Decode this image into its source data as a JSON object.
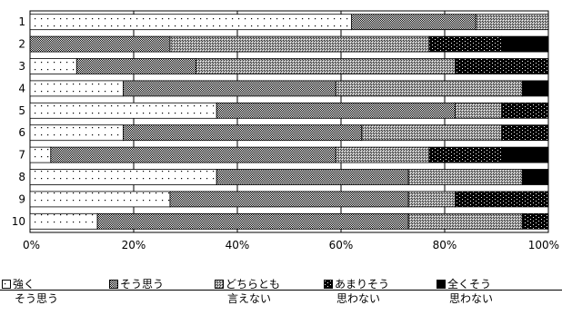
{
  "chart_data": {
    "type": "bar",
    "orientation": "horizontal",
    "stacked": true,
    "normalized_percent": true,
    "categories": [
      "1",
      "2",
      "3",
      "4",
      "5",
      "6",
      "7",
      "8",
      "9",
      "10"
    ],
    "series": [
      {
        "name": "強く\nそう思う",
        "pattern": "dots",
        "values": [
          62,
          0,
          9,
          18,
          36,
          18,
          4,
          36,
          27,
          13
        ]
      },
      {
        "name": "そう思う",
        "pattern": "dense-check",
        "values": [
          24,
          27,
          23,
          41,
          46,
          46,
          55,
          37,
          46,
          60
        ]
      },
      {
        "name": "どちらとも\n言えない",
        "pattern": "crosshatch",
        "values": [
          14,
          50,
          50,
          36,
          9,
          27,
          18,
          22,
          9,
          22
        ]
      },
      {
        "name": "あまりそう\n思わない",
        "pattern": "dark-dots",
        "values": [
          0,
          14,
          18,
          0,
          9,
          9,
          14,
          0,
          18,
          5
        ]
      },
      {
        "name": "全くそう\n思わない",
        "pattern": "solid-black",
        "values": [
          0,
          9,
          0,
          5,
          0,
          0,
          9,
          5,
          0,
          0
        ]
      }
    ],
    "x_ticks": [
      "0%",
      "20%",
      "40%",
      "60%",
      "80%",
      "100%"
    ],
    "xlim": [
      0,
      100
    ],
    "grid": "vertical",
    "legend_position": "bottom"
  },
  "legend": [
    {
      "line1": "強く",
      "line2": "そう思う"
    },
    {
      "line1": "そう思う",
      "line2": ""
    },
    {
      "line1": "どちらとも",
      "line2": "言えない"
    },
    {
      "line1": "あまりそう",
      "line2": "思わない"
    },
    {
      "line1": "全くそう",
      "line2": "思わない"
    }
  ]
}
